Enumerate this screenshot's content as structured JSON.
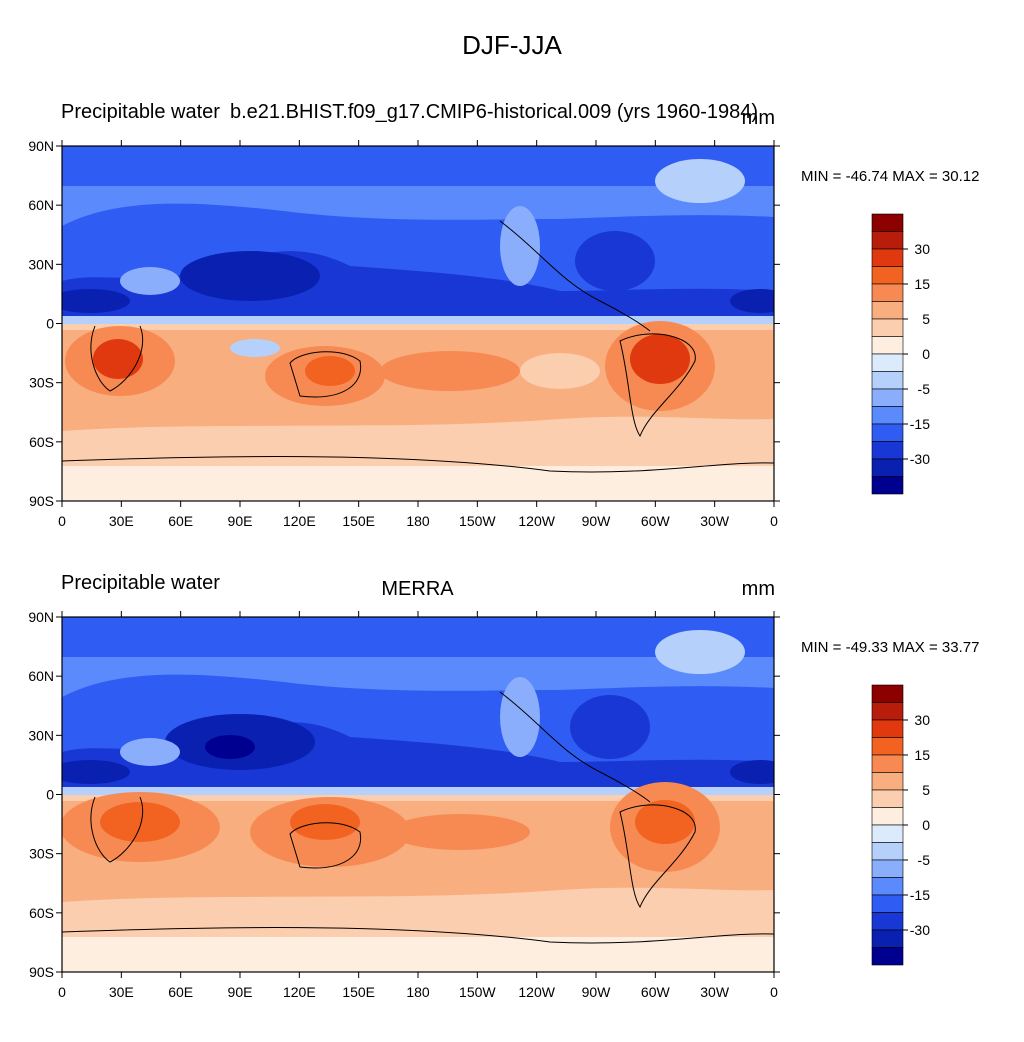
{
  "figure": {
    "title": "DJF-JJA"
  },
  "panels": [
    {
      "id": "model",
      "left_title": "Precipitable water",
      "center_title": "b.e21.BHIST.f09_g17.CMIP6-historical.009 (yrs 1960-1984)",
      "units": "mm",
      "minmax": "MIN = -46.74 MAX =  30.12"
    },
    {
      "id": "obs",
      "left_title": "Precipitable water",
      "center_title": "MERRA",
      "units": "mm",
      "minmax": "MIN = -49.33 MAX =  33.77"
    }
  ],
  "axes": {
    "lat_labels": [
      "90N",
      "60N",
      "30N",
      "0",
      "30S",
      "60S",
      "90S"
    ],
    "lon_labels": [
      "0",
      "30E",
      "60E",
      "90E",
      "120E",
      "150E",
      "180",
      "150W",
      "120W",
      "90W",
      "60W",
      "30W",
      "0"
    ]
  },
  "colorbar": {
    "colors": [
      "#8c0000",
      "#b81d0c",
      "#e0380f",
      "#f26322",
      "#f78a52",
      "#f9ae80",
      "#fcceb0",
      "#fdeee0",
      "#dcebfb",
      "#b5d0fb",
      "#8aaefb",
      "#5a8afc",
      "#2f5cf2",
      "#1937d5",
      "#0a20b0",
      "#000090"
    ],
    "labels": [
      "30",
      "15",
      "5",
      "0",
      "-5",
      "-15",
      "-30"
    ]
  }
}
